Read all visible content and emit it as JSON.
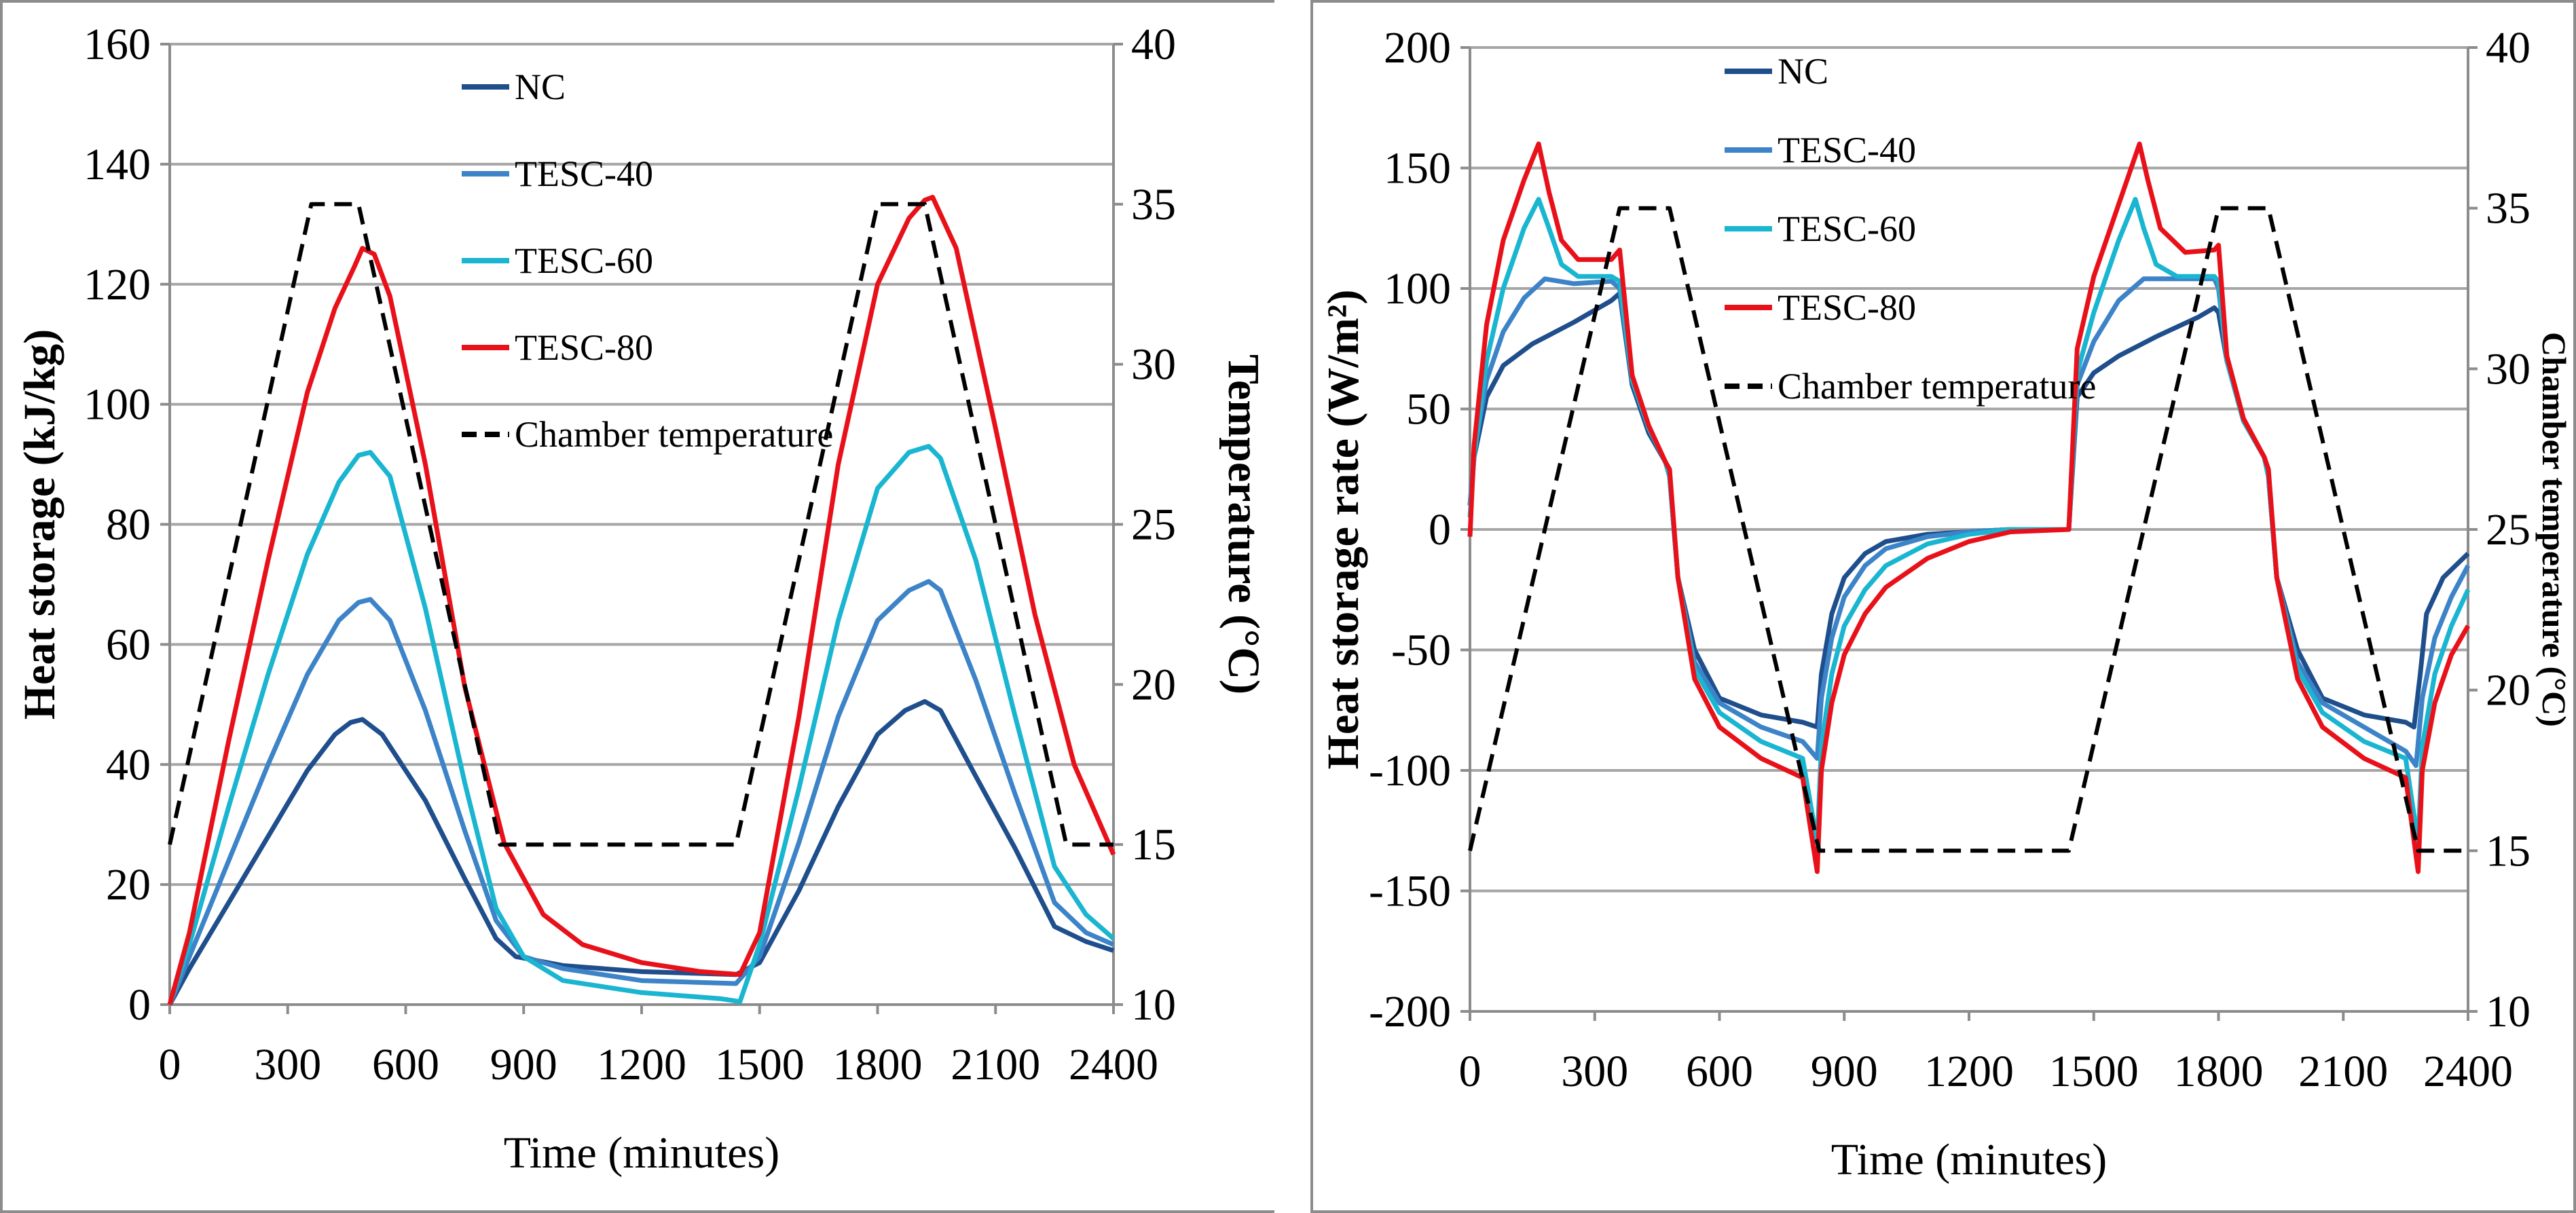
{
  "colors": {
    "NC": "#1f4e8c",
    "TESC-40": "#3c83c8",
    "TESC-60": "#1ab5d0",
    "TESC-80": "#e8111a",
    "Chamber temperature": "#000000",
    "grid": "#a6a6a6",
    "frame": "#8c8c8c"
  },
  "chart_data": [
    {
      "type": "line",
      "title": "",
      "xlabel": "Time (minutes)",
      "ylabel": "Heat storage (kJ/kg)",
      "y2label": "Temperature (°C)",
      "xlim": [
        0,
        2400
      ],
      "ylim": [
        0,
        160
      ],
      "y2lim": [
        10,
        40
      ],
      "xticks": [
        "0",
        "300",
        "600",
        "900",
        "1200",
        "1500",
        "1800",
        "2100",
        "2400"
      ],
      "yticks": [
        "0",
        "20",
        "40",
        "60",
        "80",
        "100",
        "120",
        "140",
        "160"
      ],
      "y2ticks": [
        "10",
        "15",
        "20",
        "25",
        "30",
        "35",
        "40"
      ],
      "grid": true,
      "legend_position": "top-center",
      "series": [
        {
          "name": "NC",
          "axis": "left",
          "style": "solid",
          "x": [
            0,
            50,
            150,
            250,
            350,
            420,
            460,
            490,
            540,
            650,
            750,
            830,
            880,
            1000,
            1200,
            1440,
            1500,
            1600,
            1700,
            1800,
            1870,
            1920,
            1960,
            2050,
            2150,
            2250,
            2330,
            2400
          ],
          "y": [
            0,
            6,
            17,
            28,
            39,
            45,
            47,
            47.5,
            45,
            34,
            21,
            11,
            8,
            6.5,
            5.5,
            5,
            7,
            19,
            33,
            45,
            49,
            50.5,
            49,
            38,
            26,
            13,
            10.5,
            9
          ]
        },
        {
          "name": "TESC-40",
          "axis": "left",
          "style": "solid",
          "x": [
            0,
            50,
            150,
            250,
            350,
            430,
            480,
            510,
            560,
            650,
            750,
            830,
            900,
            1000,
            1200,
            1440,
            1500,
            1600,
            1700,
            1800,
            1880,
            1930,
            1960,
            2050,
            2150,
            2250,
            2330,
            2400
          ],
          "y": [
            0,
            8,
            24,
            40,
            55,
            64,
            67,
            67.5,
            64,
            49,
            29,
            14,
            8,
            6,
            4,
            3.5,
            8,
            27,
            48,
            64,
            69,
            70.5,
            69,
            54,
            35,
            17,
            12,
            10
          ]
        },
        {
          "name": "TESC-60",
          "axis": "left",
          "style": "solid",
          "x": [
            0,
            50,
            150,
            250,
            350,
            430,
            480,
            510,
            560,
            650,
            750,
            830,
            900,
            1000,
            1200,
            1400,
            1450,
            1500,
            1600,
            1700,
            1800,
            1880,
            1930,
            1960,
            2050,
            2150,
            2250,
            2330,
            2400
          ],
          "y": [
            0,
            10,
            33,
            55,
            75,
            87,
            91.5,
            92,
            88,
            66,
            37,
            16,
            8,
            4,
            2,
            1,
            0.5,
            10,
            36,
            64,
            86,
            92,
            93,
            91,
            74,
            48,
            23,
            15,
            11
          ]
        },
        {
          "name": "TESC-80",
          "axis": "left",
          "style": "solid",
          "x": [
            0,
            50,
            100,
            150,
            250,
            350,
            420,
            470,
            490,
            520,
            560,
            650,
            750,
            850,
            950,
            1050,
            1200,
            1350,
            1450,
            1500,
            1600,
            1700,
            1800,
            1880,
            1920,
            1940,
            2000,
            2100,
            2200,
            2300,
            2400
          ],
          "y": [
            0,
            12,
            28,
            44,
            74,
            102,
            116,
            123,
            126,
            125,
            118,
            90,
            53,
            27,
            15,
            10,
            7,
            5.5,
            5,
            12,
            48,
            90,
            120,
            131,
            134,
            134.5,
            126,
            96,
            65,
            40,
            25
          ]
        },
        {
          "name": "Chamber temperature",
          "axis": "right",
          "style": "dashed",
          "x": [
            0,
            360,
            480,
            840,
            1440,
            1800,
            1920,
            2280,
            2400
          ],
          "y": [
            15,
            35,
            35,
            15,
            15,
            35,
            35,
            15,
            15
          ]
        }
      ]
    },
    {
      "type": "line",
      "title": "",
      "xlabel": "Time (minutes)",
      "ylabel": "Heat storage rate (W/m²)",
      "y2label": "Chamber temperature (°C)",
      "xlim": [
        0,
        2400
      ],
      "ylim": [
        -200,
        200
      ],
      "y2lim": [
        10,
        40
      ],
      "xticks": [
        "0",
        "300",
        "600",
        "900",
        "1200",
        "1500",
        "1800",
        "2100",
        "2400"
      ],
      "yticks": [
        "-200",
        "-150",
        "-100",
        "-50",
        "0",
        "50",
        "100",
        "150",
        "200"
      ],
      "y2ticks": [
        "10",
        "15",
        "20",
        "25",
        "30",
        "35",
        "40"
      ],
      "grid": true,
      "legend_position": "top-left",
      "series": [
        {
          "name": "NC",
          "axis": "left",
          "style": "solid",
          "x": [
            0,
            10,
            40,
            80,
            150,
            250,
            340,
            360,
            390,
            430,
            470,
            480,
            500,
            540,
            600,
            700,
            800,
            835,
            845,
            870,
            900,
            950,
            1000,
            1100,
            1200,
            1300,
            1440,
            1460,
            1500,
            1560,
            1650,
            1750,
            1790,
            1800,
            1820,
            1860,
            1910,
            1920,
            1940,
            1990,
            2050,
            2150,
            2250,
            2270,
            2285,
            2300,
            2340,
            2400
          ],
          "y": [
            10,
            30,
            55,
            68,
            77,
            86,
            95,
            98,
            60,
            40,
            28,
            22,
            -20,
            -50,
            -70,
            -77,
            -80,
            -82,
            -60,
            -35,
            -20,
            -10,
            -5,
            -2,
            -1,
            0,
            0,
            55,
            65,
            72,
            80,
            88,
            92,
            90,
            70,
            45,
            30,
            22,
            -20,
            -50,
            -70,
            -77,
            -80,
            -82,
            -60,
            -35,
            -20,
            -10
          ]
        },
        {
          "name": "TESC-40",
          "axis": "left",
          "style": "solid",
          "x": [
            0,
            10,
            40,
            80,
            130,
            180,
            250,
            340,
            360,
            390,
            430,
            470,
            480,
            500,
            540,
            600,
            700,
            800,
            835,
            845,
            870,
            900,
            950,
            1000,
            1100,
            1200,
            1300,
            1440,
            1460,
            1500,
            1560,
            1620,
            1680,
            1750,
            1790,
            1800,
            1820,
            1860,
            1910,
            1920,
            1940,
            1990,
            2050,
            2150,
            2250,
            2275,
            2290,
            2320,
            2360,
            2400
          ],
          "y": [
            10,
            32,
            62,
            82,
            96,
            104,
            102,
            103,
            100,
            62,
            42,
            28,
            22,
            -20,
            -55,
            -72,
            -82,
            -88,
            -95,
            -70,
            -45,
            -28,
            -15,
            -8,
            -3,
            -1,
            0,
            0,
            60,
            78,
            95,
            104,
            104,
            104,
            104,
            100,
            70,
            45,
            30,
            22,
            -20,
            -55,
            -72,
            -82,
            -92,
            -98,
            -70,
            -45,
            -28,
            -15
          ]
        },
        {
          "name": "TESC-60",
          "axis": "left",
          "style": "solid",
          "x": [
            0,
            10,
            40,
            80,
            130,
            165,
            190,
            220,
            260,
            340,
            360,
            390,
            430,
            470,
            480,
            500,
            540,
            600,
            700,
            800,
            835,
            845,
            870,
            900,
            950,
            1000,
            1100,
            1200,
            1300,
            1440,
            1460,
            1500,
            1560,
            1600,
            1620,
            1650,
            1700,
            1790,
            1800,
            1820,
            1860,
            1910,
            1920,
            1940,
            1990,
            2050,
            2150,
            2250,
            2280,
            2290,
            2320,
            2360,
            2400
          ],
          "y": [
            5,
            30,
            70,
            100,
            125,
            137,
            125,
            110,
            105,
            105,
            103,
            62,
            42,
            28,
            22,
            -20,
            -58,
            -76,
            -88,
            -95,
            -130,
            -90,
            -60,
            -40,
            -25,
            -15,
            -6,
            -2,
            0,
            0,
            65,
            90,
            120,
            137,
            125,
            110,
            105,
            105,
            103,
            70,
            45,
            30,
            22,
            -20,
            -58,
            -76,
            -88,
            -95,
            -130,
            -90,
            -60,
            -40,
            -25
          ]
        },
        {
          "name": "TESC-80",
          "axis": "left",
          "style": "solid",
          "x": [
            0,
            10,
            40,
            80,
            130,
            165,
            190,
            220,
            260,
            340,
            360,
            390,
            430,
            470,
            480,
            500,
            540,
            600,
            700,
            800,
            835,
            845,
            870,
            900,
            950,
            1000,
            1100,
            1200,
            1300,
            1440,
            1460,
            1500,
            1560,
            1610,
            1630,
            1660,
            1720,
            1790,
            1800,
            1820,
            1860,
            1910,
            1920,
            1940,
            1990,
            2050,
            2150,
            2250,
            2280,
            2290,
            2320,
            2360,
            2400
          ],
          "y": [
            -3,
            35,
            85,
            120,
            145,
            160,
            140,
            120,
            112,
            112,
            116,
            64,
            43,
            28,
            25,
            -20,
            -62,
            -82,
            -95,
            -103,
            -142,
            -100,
            -72,
            -52,
            -35,
            -24,
            -12,
            -5,
            -1,
            0,
            75,
            105,
            135,
            160,
            145,
            125,
            115,
            116,
            118,
            72,
            46,
            30,
            25,
            -20,
            -62,
            -82,
            -95,
            -103,
            -142,
            -100,
            -72,
            -52,
            -40
          ]
        },
        {
          "name": "Chamber temperature",
          "axis": "right",
          "style": "dashed",
          "x": [
            0,
            360,
            480,
            840,
            1440,
            1800,
            1920,
            2280,
            2400
          ],
          "y": [
            15,
            35,
            35,
            15,
            15,
            35,
            35,
            15,
            15
          ]
        }
      ]
    }
  ]
}
